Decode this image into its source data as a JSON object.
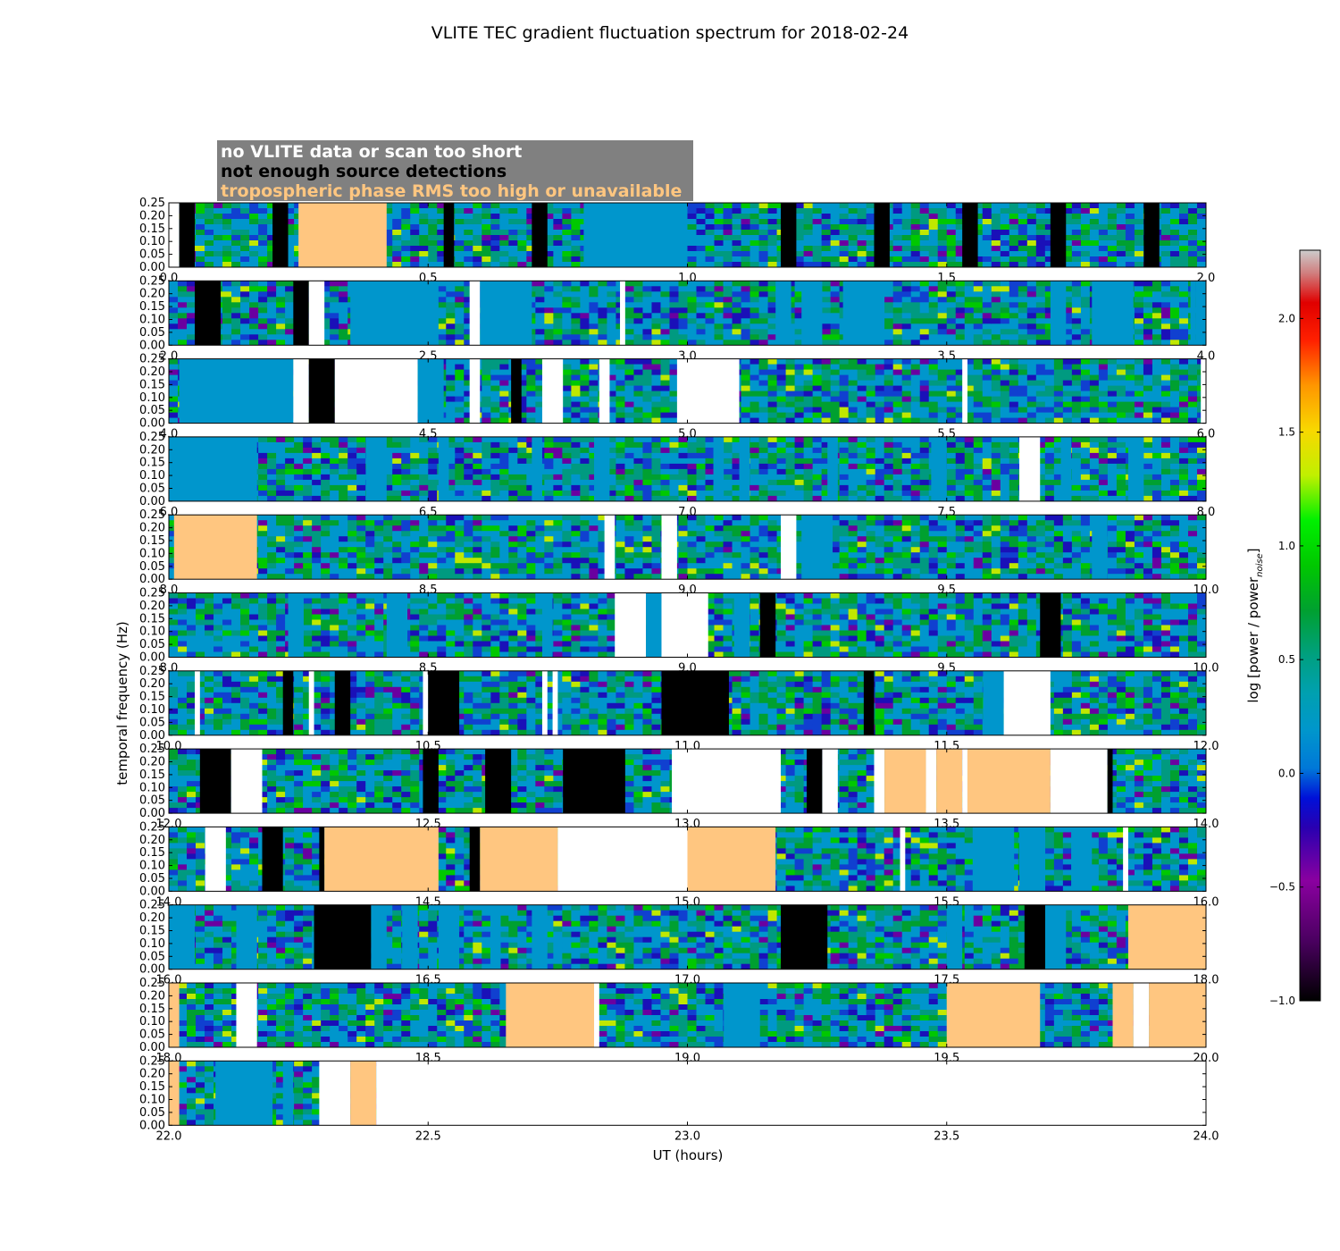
{
  "chart_data": {
    "type": "heatmap",
    "title": "VLITE TEC gradient fluctuation spectrum for 2018-02-24",
    "xlabel": "UT (hours)",
    "ylabel": "temporal frequency (Hz)",
    "colorbar_label": "log [power / power",
    "colorbar_label_sub": "noise",
    "colorbar_label_close": "]",
    "colorbar_ticks": [
      "2.0",
      "1.5",
      "1.0",
      "0.5",
      "0.0",
      "−0.5",
      "−1.0"
    ],
    "colorbar_range": [
      -1.0,
      2.3
    ],
    "ytick_labels": [
      "0.25",
      "0.20",
      "0.15",
      "0.10",
      "0.05",
      "0.00"
    ],
    "ylim": [
      0,
      0.25
    ],
    "xlim": [
      0,
      24
    ],
    "hours_per_row": 2,
    "legend": [
      {
        "label": "no VLITE data or scan too short",
        "color": "#ffffff"
      },
      {
        "label": "not enough source detections",
        "color": "#000000"
      },
      {
        "label": "tropospheric phase RMS too high or unavailable",
        "color": "#ffc680"
      }
    ],
    "rows": [
      {
        "xticks": [
          "0.0",
          "0.5",
          "1.0",
          "1.5",
          "2.0"
        ],
        "blocks": [
          [
            0,
            0.02,
            "w"
          ],
          [
            0.02,
            0.05,
            "k"
          ],
          [
            0.2,
            0.23,
            "k"
          ],
          [
            0.25,
            0.42,
            "o"
          ],
          [
            0.53,
            0.55,
            "k"
          ],
          [
            0.7,
            0.73,
            "k"
          ],
          [
            0.8,
            1.0,
            "b"
          ],
          [
            1.18,
            1.21,
            "k"
          ],
          [
            1.36,
            1.39,
            "k"
          ],
          [
            1.53,
            1.56,
            "k"
          ],
          [
            1.7,
            1.73,
            "k"
          ],
          [
            1.88,
            1.91,
            "k"
          ]
        ]
      },
      {
        "xticks": [
          "2.0",
          "2.5",
          "3.0",
          "3.5",
          "4.0"
        ],
        "blocks": [
          [
            2.05,
            2.1,
            "k"
          ],
          [
            2.24,
            2.27,
            "k"
          ],
          [
            2.27,
            2.3,
            "w"
          ],
          [
            2.35,
            2.52,
            "b"
          ],
          [
            2.58,
            2.6,
            "w"
          ],
          [
            2.6,
            2.7,
            "b"
          ],
          [
            2.87,
            2.88,
            "w"
          ],
          [
            3.17,
            3.2,
            "b"
          ],
          [
            3.22,
            3.26,
            "b"
          ],
          [
            3.3,
            3.38,
            "b"
          ],
          [
            3.7,
            3.73,
            "b"
          ],
          [
            3.78,
            3.86,
            "b"
          ],
          [
            3.97,
            3.98,
            "b"
          ],
          [
            3.98,
            4.0,
            "b"
          ]
        ]
      },
      {
        "xticks": [
          "4.0",
          "4.5",
          "5.0",
          "5.5",
          "6.0"
        ],
        "blocks": [
          [
            4.02,
            4.24,
            "b"
          ],
          [
            4.24,
            4.27,
            "w"
          ],
          [
            4.27,
            4.32,
            "k"
          ],
          [
            4.32,
            4.48,
            "w"
          ],
          [
            4.48,
            4.53,
            "b"
          ],
          [
            4.58,
            4.6,
            "w"
          ],
          [
            4.66,
            4.68,
            "k"
          ],
          [
            4.72,
            4.76,
            "w"
          ],
          [
            4.83,
            4.85,
            "w"
          ],
          [
            4.98,
            5.1,
            "w"
          ],
          [
            5.53,
            5.54,
            "w"
          ],
          [
            5.99,
            6.0,
            "w"
          ]
        ]
      },
      {
        "xticks": [
          "6.0",
          "6.5",
          "7.0",
          "7.5",
          "8.0"
        ],
        "blocks": [
          [
            6.0,
            6.17,
            "b"
          ],
          [
            6.38,
            6.42,
            "b"
          ],
          [
            6.52,
            6.54,
            "b"
          ],
          [
            6.7,
            6.72,
            "b"
          ],
          [
            6.82,
            6.85,
            "b"
          ],
          [
            7.05,
            7.07,
            "b"
          ],
          [
            7.1,
            7.12,
            "b"
          ],
          [
            7.27,
            7.29,
            "b"
          ],
          [
            7.47,
            7.5,
            "b"
          ],
          [
            7.64,
            7.68,
            "w"
          ],
          [
            7.72,
            7.74,
            "b"
          ],
          [
            7.85,
            7.88,
            "b"
          ]
        ]
      },
      {
        "xticks": [
          "8.0",
          "8.5",
          "9.0",
          "9.5",
          "10.0"
        ],
        "blocks": [
          [
            8.01,
            8.17,
            "o"
          ],
          [
            8.84,
            8.86,
            "w"
          ],
          [
            8.95,
            8.98,
            "w"
          ],
          [
            9.18,
            9.21,
            "w"
          ],
          [
            9.22,
            9.28,
            "b"
          ],
          [
            9.78,
            9.81,
            "b"
          ]
        ]
      },
      {
        "xticks": [
          "8.0",
          "8.5",
          "9.0",
          "9.5",
          "10.0"
        ],
        "blocks": [
          [
            8.23,
            8.26,
            "b"
          ],
          [
            8.42,
            8.46,
            "b"
          ],
          [
            8.72,
            8.74,
            "b"
          ],
          [
            8.86,
            8.92,
            "w"
          ],
          [
            8.92,
            8.95,
            "b"
          ],
          [
            8.95,
            9.04,
            "w"
          ],
          [
            9.09,
            9.12,
            "b"
          ],
          [
            9.14,
            9.17,
            "k"
          ],
          [
            9.68,
            9.72,
            "k"
          ]
        ]
      },
      {
        "xticks": [
          "10.0",
          "10.5",
          "11.0",
          "11.5",
          "12.0"
        ],
        "blocks": [
          [
            10.05,
            10.06,
            "w"
          ],
          [
            10.22,
            10.24,
            "k"
          ],
          [
            10.27,
            10.28,
            "w"
          ],
          [
            10.32,
            10.35,
            "k"
          ],
          [
            10.49,
            10.5,
            "w"
          ],
          [
            10.5,
            10.56,
            "k"
          ],
          [
            10.72,
            10.73,
            "w"
          ],
          [
            10.74,
            10.75,
            "w"
          ],
          [
            10.95,
            11.08,
            "k"
          ],
          [
            11.34,
            11.36,
            "k"
          ],
          [
            11.57,
            11.61,
            "b"
          ],
          [
            11.61,
            11.7,
            "w"
          ]
        ]
      },
      {
        "xticks": [
          "12.0",
          "12.5",
          "13.0",
          "13.5",
          "14.0"
        ],
        "blocks": [
          [
            12.06,
            12.12,
            "k"
          ],
          [
            12.12,
            12.18,
            "w"
          ],
          [
            12.49,
            12.52,
            "k"
          ],
          [
            12.61,
            12.66,
            "k"
          ],
          [
            12.76,
            12.88,
            "k"
          ],
          [
            12.97,
            13.18,
            "w"
          ],
          [
            13.23,
            13.26,
            "k"
          ],
          [
            13.26,
            13.29,
            "w"
          ],
          [
            13.36,
            13.38,
            "w"
          ],
          [
            13.38,
            13.46,
            "o"
          ],
          [
            13.46,
            13.48,
            "w"
          ],
          [
            13.48,
            13.53,
            "o"
          ],
          [
            13.53,
            13.54,
            "w"
          ],
          [
            13.54,
            13.7,
            "o"
          ],
          [
            13.7,
            13.81,
            "w"
          ],
          [
            13.81,
            13.82,
            "k"
          ]
        ]
      },
      {
        "xticks": [
          "14.0",
          "14.5",
          "15.0",
          "15.5",
          "16.0"
        ],
        "blocks": [
          [
            14.07,
            14.11,
            "w"
          ],
          [
            14.18,
            14.22,
            "k"
          ],
          [
            14.29,
            14.3,
            "k"
          ],
          [
            14.3,
            14.52,
            "o"
          ],
          [
            14.58,
            14.6,
            "k"
          ],
          [
            14.6,
            14.75,
            "o"
          ],
          [
            14.75,
            15.0,
            "w"
          ],
          [
            15.0,
            15.17,
            "o"
          ],
          [
            15.41,
            15.42,
            "w"
          ],
          [
            15.55,
            15.63,
            "b"
          ],
          [
            15.64,
            15.69,
            "b"
          ],
          [
            15.74,
            15.78,
            "b"
          ],
          [
            15.84,
            15.85,
            "w"
          ]
        ]
      },
      {
        "xticks": [
          "16.0",
          "16.5",
          "17.0",
          "17.5",
          "18.0"
        ],
        "blocks": [
          [
            16.0,
            16.05,
            "b"
          ],
          [
            16.13,
            16.17,
            "b"
          ],
          [
            16.28,
            16.39,
            "k"
          ],
          [
            16.39,
            16.42,
            "b"
          ],
          [
            16.45,
            16.48,
            "b"
          ],
          [
            16.52,
            16.56,
            "b"
          ],
          [
            16.62,
            16.64,
            "b"
          ],
          [
            16.7,
            16.73,
            "b"
          ],
          [
            17.18,
            17.27,
            "k"
          ],
          [
            17.5,
            17.53,
            "b"
          ],
          [
            17.65,
            17.69,
            "k"
          ],
          [
            17.69,
            17.73,
            "b"
          ],
          [
            17.85,
            18.0,
            "o"
          ]
        ]
      },
      {
        "xticks": [
          "18.0",
          "18.5",
          "19.0",
          "19.5",
          "20.0"
        ],
        "blocks": [
          [
            18.0,
            18.02,
            "o"
          ],
          [
            18.13,
            18.17,
            "w"
          ],
          [
            18.65,
            18.82,
            "o"
          ],
          [
            18.82,
            18.83,
            "w"
          ],
          [
            19.07,
            19.14,
            "b"
          ],
          [
            19.5,
            19.68,
            "o"
          ],
          [
            19.82,
            19.86,
            "o"
          ],
          [
            19.86,
            19.89,
            "w"
          ],
          [
            19.89,
            20.0,
            "o"
          ]
        ]
      },
      {
        "xticks": [
          "22.0",
          "22.5",
          "23.0",
          "23.5",
          "24.0"
        ],
        "blocks": [
          [
            22.0,
            22.02,
            "o"
          ],
          [
            22.09,
            22.2,
            "b"
          ],
          [
            22.22,
            22.24,
            "b"
          ],
          [
            22.29,
            22.35,
            "w"
          ],
          [
            22.35,
            22.4,
            "o"
          ],
          [
            22.4,
            24.0,
            "w"
          ]
        ]
      }
    ]
  }
}
